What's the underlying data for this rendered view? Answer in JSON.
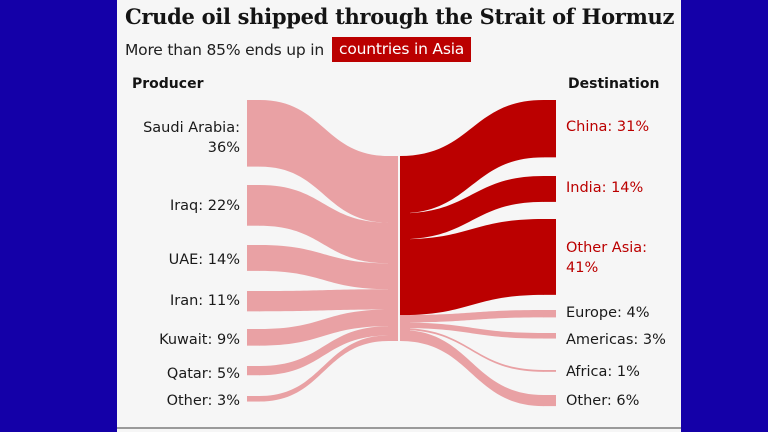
{
  "title": "Crude oil shipped through the Strait of Hormuz",
  "subtitle": {
    "prefix": "More than 85% ends up in",
    "highlight": "countries in Asia"
  },
  "colors": {
    "asia_red": "#bb0000",
    "other_pink": "#e9a1a4",
    "background": "#f6f6f6",
    "frame": "#1400a8"
  },
  "headers": {
    "left": "Producer",
    "right": "Destination"
  },
  "producers": [
    {
      "label": "Saudi Arabia:",
      "label2": "36%",
      "value": 36
    },
    {
      "label": "Iraq: 22%",
      "value": 22
    },
    {
      "label": "UAE: 14%",
      "value": 14
    },
    {
      "label": "Iran: 11%",
      "value": 11
    },
    {
      "label": "Kuwait: 9%",
      "value": 9
    },
    {
      "label": "Qatar: 5%",
      "value": 5
    },
    {
      "label": "Other: 3%",
      "value": 3
    }
  ],
  "destinations": [
    {
      "label": "China: 31%",
      "value": 31,
      "asia": true
    },
    {
      "label": "India: 14%",
      "value": 14,
      "asia": true
    },
    {
      "label": "Other Asia:",
      "label2": "41%",
      "value": 41,
      "asia": true
    },
    {
      "label": "Europe: 4%",
      "value": 4,
      "asia": false
    },
    {
      "label": "Americas: 3%",
      "value": 3,
      "asia": false
    },
    {
      "label": "Africa: 1%",
      "value": 1,
      "asia": false
    },
    {
      "label": "Other: 6%",
      "value": 6,
      "asia": false
    }
  ],
  "chart_data": {
    "type": "sankey",
    "title": "Crude oil shipped through the Strait of Hormuz",
    "subtitle": "More than 85% ends up in countries in Asia",
    "units": "% of crude oil shipped",
    "source_column": "Producer",
    "target_column": "Destination",
    "sources": [
      {
        "name": "Saudi Arabia",
        "value": 36
      },
      {
        "name": "Iraq",
        "value": 22
      },
      {
        "name": "UAE",
        "value": 14
      },
      {
        "name": "Iran",
        "value": 11
      },
      {
        "name": "Kuwait",
        "value": 9
      },
      {
        "name": "Qatar",
        "value": 5
      },
      {
        "name": "Other",
        "value": 3
      }
    ],
    "targets": [
      {
        "name": "China",
        "value": 31,
        "group": "Asia"
      },
      {
        "name": "India",
        "value": 14,
        "group": "Asia"
      },
      {
        "name": "Other Asia",
        "value": 41,
        "group": "Asia"
      },
      {
        "name": "Europe",
        "value": 4,
        "group": "Non-Asia"
      },
      {
        "name": "Americas",
        "value": 3,
        "group": "Non-Asia"
      },
      {
        "name": "Africa",
        "value": 1,
        "group": "Non-Asia"
      },
      {
        "name": "Other",
        "value": 6,
        "group": "Non-Asia"
      }
    ],
    "highlight_group": "Asia",
    "asia_total": 86
  }
}
